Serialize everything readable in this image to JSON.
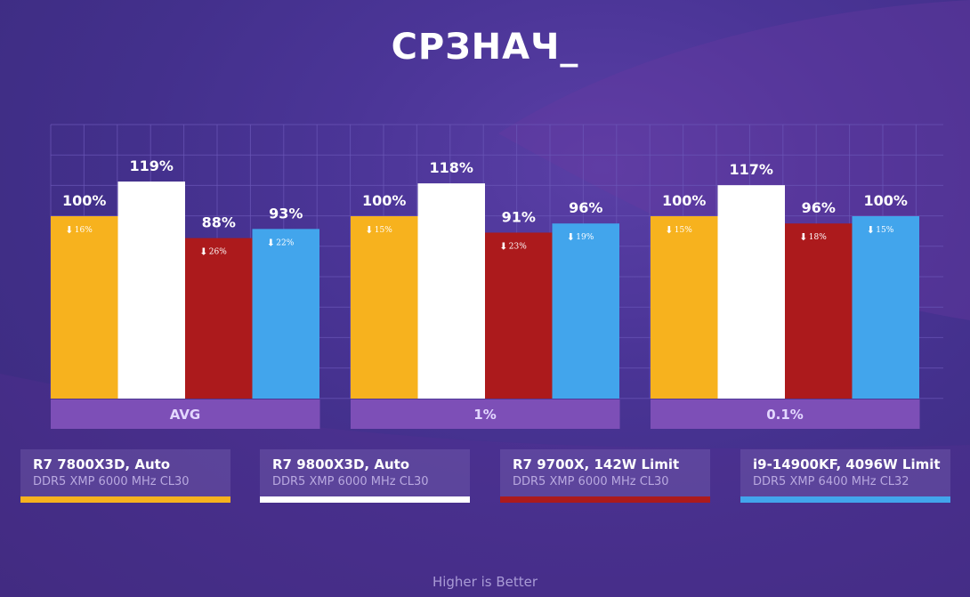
{
  "title": "СРЗНАЧ_",
  "footer": "Higher is Better",
  "colors": {
    "orange": "#f7b21e",
    "white": "#ffffff",
    "red": "#ac1a1c",
    "blue": "#42a5ec",
    "group_label_bg": "#7d4fb7",
    "grid": "#6b57b8"
  },
  "legend": [
    {
      "name": "R7 7800X3D, Auto",
      "sub": "DDR5 XMP 6000 MHz CL30",
      "color": "#f7b21e"
    },
    {
      "name": "R7 9800X3D, Auto",
      "sub": "DDR5 XMP 6000 MHz CL30",
      "color": "#ffffff"
    },
    {
      "name": "R7 9700X, 142W Limit",
      "sub": "DDR5 XMP 6000 MHz CL30",
      "color": "#ac1a1c"
    },
    {
      "name": "i9-14900KF, 4096W Limit",
      "sub": "DDR5 XMP 6400 MHz CL32",
      "color": "#42a5ec"
    }
  ],
  "chart_data": {
    "type": "bar",
    "title": "СРЗНАЧ_",
    "categories": [
      "AVG",
      "1%",
      "0.1%"
    ],
    "ylim": [
      0,
      120
    ],
    "grid": true,
    "legend_position": "bottom",
    "series": [
      {
        "name": "R7 7800X3D, Auto",
        "color": "#f7b21e",
        "values": [
          100,
          100,
          100
        ],
        "labels": [
          "100%",
          "100%",
          "100%"
        ],
        "deltas": [
          "16%",
          "15%",
          "15%"
        ]
      },
      {
        "name": "R7 9800X3D, Auto",
        "color": "#ffffff",
        "values": [
          119,
          118,
          117
        ],
        "labels": [
          "119%",
          "118%",
          "117%"
        ],
        "deltas": [
          "",
          "",
          ""
        ]
      },
      {
        "name": "R7 9700X, 142W Limit",
        "color": "#ac1a1c",
        "values": [
          88,
          91,
          96
        ],
        "labels": [
          "88%",
          "91%",
          "96%"
        ],
        "deltas": [
          "26%",
          "23%",
          "18%"
        ]
      },
      {
        "name": "i9-14900KF, 4096W Limit",
        "color": "#42a5ec",
        "values": [
          93,
          96,
          100
        ],
        "labels": [
          "93%",
          "96%",
          "100%"
        ],
        "deltas": [
          "22%",
          "19%",
          "15%"
        ]
      }
    ]
  }
}
